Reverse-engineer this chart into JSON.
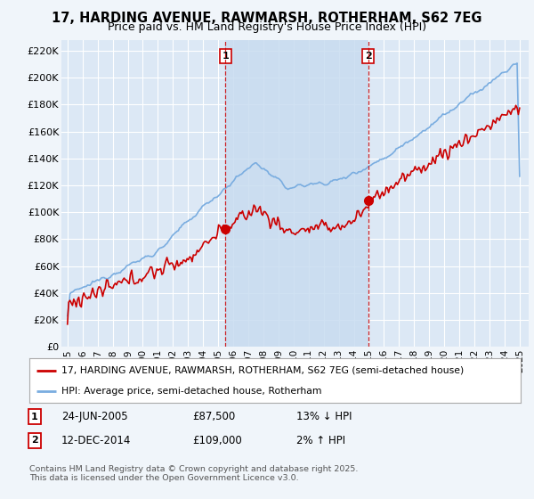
{
  "title": "17, HARDING AVENUE, RAWMARSH, ROTHERHAM, S62 7EG",
  "subtitle": "Price paid vs. HM Land Registry's House Price Index (HPI)",
  "ylabel_ticks": [
    "£0",
    "£20K",
    "£40K",
    "£60K",
    "£80K",
    "£100K",
    "£120K",
    "£140K",
    "£160K",
    "£180K",
    "£200K",
    "£220K"
  ],
  "ytick_values": [
    0,
    20000,
    40000,
    60000,
    80000,
    100000,
    120000,
    140000,
    160000,
    180000,
    200000,
    220000
  ],
  "ylim": [
    0,
    228000
  ],
  "background_color": "#f0f5fa",
  "plot_bg": "#dce8f5",
  "shade_color": "#c8dcf0",
  "grid_color": "#ffffff",
  "sale1_date": 2005.48,
  "sale1_price": 87500,
  "sale2_date": 2014.95,
  "sale2_price": 109000,
  "legend_line1": "17, HARDING AVENUE, RAWMARSH, ROTHERHAM, S62 7EG (semi-detached house)",
  "legend_line2": "HPI: Average price, semi-detached house, Rotherham",
  "footer": "Contains HM Land Registry data © Crown copyright and database right 2025.\nThis data is licensed under the Open Government Licence v3.0.",
  "line_red": "#cc0000",
  "line_blue": "#7aade0",
  "vline_color": "#cc0000",
  "marker_color": "#cc0000"
}
